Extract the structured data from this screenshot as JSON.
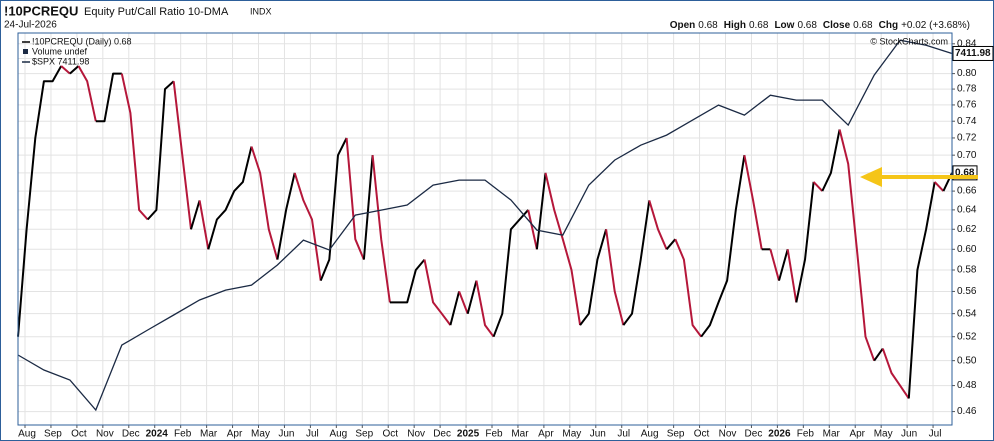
{
  "chart_data": {
    "type": "line",
    "title": "!10PCREQU",
    "subtitle": "Equity Put/Call Ratio 10-DMA",
    "exchange": "INDX",
    "date": "24-Jul-2026",
    "quote": [
      {
        "label": "Open",
        "value": "0.68"
      },
      {
        "label": "High",
        "value": "0.68"
      },
      {
        "label": "Low",
        "value": "0.68"
      },
      {
        "label": "Close",
        "value": "0.68"
      },
      {
        "label": "Chg",
        "value": "+0.02 (+3.68%)"
      }
    ],
    "copyright": "© StockCharts.com",
    "volume_label": "Volume undef",
    "log_scale": true,
    "grid": true,
    "ylim": [
      0.45,
      0.855
    ],
    "yticks": [
      0.46,
      0.48,
      {
        "value": 0.5,
        "label": "0.50"
      },
      0.52,
      0.54,
      0.56,
      0.58,
      {
        "value": 0.6,
        "label": "0.60"
      },
      0.62,
      0.64,
      0.66,
      0.68,
      {
        "value": 0.7,
        "label": "0.70"
      },
      0.72,
      0.74,
      0.76,
      0.78,
      {
        "value": 0.8,
        "label": "0.80"
      },
      0.82,
      0.84
    ],
    "y2lim": [
      4000,
      7600
    ],
    "x_labels": [
      "Aug",
      "Sep",
      "Oct",
      "Nov",
      "Dec",
      "2024",
      "Feb",
      "Mar",
      "Apr",
      "May",
      "Jun",
      "Jul",
      "Aug",
      "Sep",
      "Oct",
      "Nov",
      "Dec",
      "2025",
      "Feb",
      "Mar",
      "Apr",
      "May",
      "Jun",
      "Jul",
      "Aug",
      "Sep",
      "Oct",
      "Nov",
      "Dec",
      "2026",
      "Feb",
      "Mar",
      "Apr",
      "May",
      "Jun",
      "Jul"
    ],
    "series": [
      {
        "name": "!10PCREQU (Daily) 0.68",
        "color": "#000000",
        "down_color": "#b5173a",
        "values": [
          0.52,
          0.62,
          0.72,
          0.79,
          0.79,
          0.81,
          0.8,
          0.81,
          0.79,
          0.74,
          0.74,
          0.8,
          0.8,
          0.75,
          0.64,
          0.63,
          0.64,
          0.78,
          0.79,
          0.7,
          0.62,
          0.65,
          0.6,
          0.63,
          0.64,
          0.66,
          0.67,
          0.71,
          0.68,
          0.62,
          0.59,
          0.64,
          0.68,
          0.65,
          0.63,
          0.57,
          0.59,
          0.7,
          0.72,
          0.61,
          0.59,
          0.7,
          0.61,
          0.55,
          0.55,
          0.55,
          0.58,
          0.59,
          0.55,
          0.54,
          0.53,
          0.56,
          0.54,
          0.57,
          0.53,
          0.52,
          0.54,
          0.62,
          0.63,
          0.64,
          0.6,
          0.68,
          0.64,
          0.61,
          0.58,
          0.53,
          0.54,
          0.59,
          0.62,
          0.56,
          0.53,
          0.54,
          0.59,
          0.65,
          0.62,
          0.6,
          0.61,
          0.59,
          0.53,
          0.52,
          0.53,
          0.55,
          0.57,
          0.64,
          0.7,
          0.65,
          0.6,
          0.6,
          0.57,
          0.6,
          0.55,
          0.59,
          0.67,
          0.66,
          0.68,
          0.73,
          0.69,
          0.6,
          0.52,
          0.5,
          0.51,
          0.49,
          0.48,
          0.47,
          0.58,
          0.62,
          0.67,
          0.66,
          0.68
        ]
      },
      {
        "name": "$SPX 7411.98",
        "color": "#1b2a44",
        "axis": "y2",
        "values": [
          4643,
          4505,
          4413,
          4138,
          4734,
          4872,
          5010,
          5148,
          5239,
          5285,
          5469,
          5698,
          5607,
          5928,
          5974,
          6020,
          6203,
          6249,
          6249,
          6066,
          5790,
          5744,
          6203,
          6433,
          6570,
          6662,
          6800,
          6938,
          6846,
          7029,
          6984,
          6984,
          6754,
          7213,
          7534,
          7488,
          7411.98
        ]
      }
    ]
  }
}
